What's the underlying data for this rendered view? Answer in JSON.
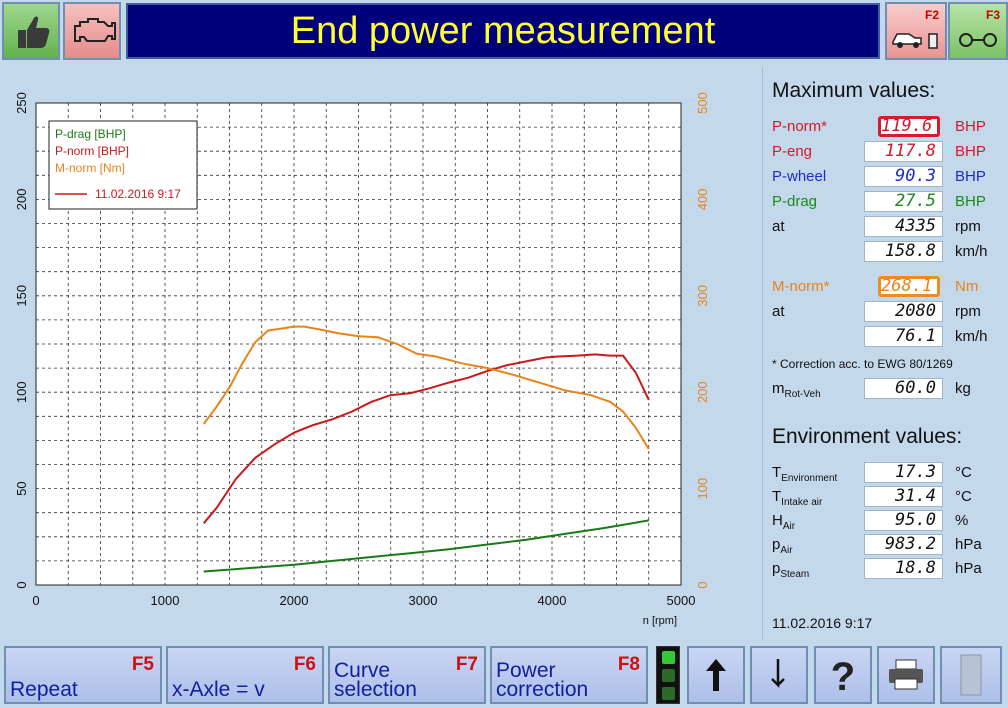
{
  "header": {
    "title": "End power measurement",
    "f2_key": "F2",
    "f3_key": "F3",
    "left_buttons": [
      "thumb-up-icon",
      "engine-icon"
    ]
  },
  "chart_data": {
    "type": "line",
    "x_axis": {
      "label": "n [rpm]",
      "range": [
        0,
        5000
      ],
      "ticks": [
        0,
        1000,
        2000,
        3000,
        4000,
        5000
      ]
    },
    "y_axis_left": {
      "range": [
        0,
        250
      ],
      "ticks": [
        0,
        50,
        100,
        150,
        200,
        250
      ]
    },
    "y_axis_right": {
      "range": [
        0,
        500
      ],
      "ticks": [
        0,
        100,
        200,
        300,
        400,
        500
      ],
      "color": "#e8841c"
    },
    "grid": true,
    "legend_position": "top-left",
    "legend": {
      "entries": [
        {
          "name": "P-drag [BHP]",
          "color": "#1a7a1a"
        },
        {
          "name": "P-norm [BHP]",
          "color": "#c81a1a"
        },
        {
          "name": "M-norm [Nm]",
          "color": "#e8841c"
        }
      ],
      "line_label": "11.02.2016 9:17"
    },
    "series": [
      {
        "name": "P-drag [BHP]",
        "axis": "left",
        "color": "#1a7a1a",
        "points": [
          [
            1300,
            7
          ],
          [
            1500,
            8
          ],
          [
            1700,
            9
          ],
          [
            2000,
            10.5
          ],
          [
            2300,
            12.5
          ],
          [
            2600,
            14.5
          ],
          [
            2900,
            16.5
          ],
          [
            3200,
            18.5
          ],
          [
            3500,
            21
          ],
          [
            3800,
            23.5
          ],
          [
            4100,
            26.5
          ],
          [
            4400,
            29.5
          ],
          [
            4750,
            33.5
          ]
        ]
      },
      {
        "name": "P-norm [BHP]",
        "axis": "left",
        "color": "#c81a1a",
        "points": [
          [
            1300,
            32
          ],
          [
            1400,
            40
          ],
          [
            1550,
            55
          ],
          [
            1700,
            66
          ],
          [
            1850,
            73
          ],
          [
            2000,
            79
          ],
          [
            2150,
            83
          ],
          [
            2300,
            86
          ],
          [
            2450,
            90
          ],
          [
            2600,
            95
          ],
          [
            2750,
            98.5
          ],
          [
            2900,
            99.5
          ],
          [
            3050,
            102
          ],
          [
            3200,
            105
          ],
          [
            3350,
            107.5
          ],
          [
            3500,
            111
          ],
          [
            3650,
            114
          ],
          [
            3800,
            116
          ],
          [
            3950,
            118
          ],
          [
            4050,
            118.5
          ],
          [
            4200,
            119
          ],
          [
            4335,
            119.6
          ],
          [
            4450,
            119
          ],
          [
            4550,
            119
          ],
          [
            4650,
            110
          ],
          [
            4750,
            96
          ]
        ]
      },
      {
        "name": "M-norm [Nm]",
        "axis": "right",
        "color": "#e8841c",
        "points": [
          [
            1300,
            167
          ],
          [
            1400,
            185
          ],
          [
            1500,
            205
          ],
          [
            1600,
            230
          ],
          [
            1700,
            252
          ],
          [
            1800,
            264
          ],
          [
            1900,
            266
          ],
          [
            2000,
            268
          ],
          [
            2080,
            268.1
          ],
          [
            2200,
            265
          ],
          [
            2350,
            261
          ],
          [
            2500,
            258
          ],
          [
            2650,
            257
          ],
          [
            2800,
            250
          ],
          [
            2950,
            240
          ],
          [
            3100,
            237
          ],
          [
            3300,
            230
          ],
          [
            3500,
            225
          ],
          [
            3700,
            218
          ],
          [
            3900,
            210
          ],
          [
            4100,
            202
          ],
          [
            4300,
            197
          ],
          [
            4450,
            190
          ],
          [
            4550,
            180
          ],
          [
            4650,
            163
          ],
          [
            4750,
            141
          ]
        ]
      }
    ]
  },
  "maximum": {
    "title": "Maximum values:",
    "rows": [
      {
        "label": "P-norm*",
        "value": "119.6",
        "unit": "BHP",
        "color": "#d21a2a",
        "highlight": "red"
      },
      {
        "label": "P-eng",
        "value": "117.8",
        "unit": "BHP",
        "color": "#d21a2a"
      },
      {
        "label": "P-wheel",
        "value": "90.3",
        "unit": "BHP",
        "color": "#1c2cc6"
      },
      {
        "label": "P-drag",
        "value": "27.5",
        "unit": "BHP",
        "color": "#1a8a1a"
      },
      {
        "label": "at",
        "value": "4335",
        "unit": "rpm",
        "color": "#111111"
      },
      {
        "label": "",
        "value": "158.8",
        "unit": "km/h",
        "color": "#111111"
      }
    ],
    "torque_rows": [
      {
        "label": "M-norm*",
        "value": "268.1",
        "unit": "Nm",
        "color": "#e8841c",
        "highlight": "orange"
      },
      {
        "label": "at",
        "value": "2080",
        "unit": "rpm",
        "color": "#111111"
      },
      {
        "label": "",
        "value": "76.1",
        "unit": "km/h",
        "color": "#111111"
      }
    ],
    "correction_note": "* Correction acc. to EWG 80/1269",
    "mrot": {
      "label_main": "m",
      "label_sub": "Rot-Veh",
      "value": "60.0",
      "unit": "kg"
    }
  },
  "environment": {
    "title": "Environment values:",
    "rows": [
      {
        "main": "T",
        "sub": "Environment",
        "value": "17.3",
        "unit": "°C"
      },
      {
        "main": "T",
        "sub": "Intake air",
        "value": "31.4",
        "unit": "°C"
      },
      {
        "main": "H",
        "sub": "Air",
        "value": "95.0",
        "unit": "%"
      },
      {
        "main": "p",
        "sub": "Air",
        "value": "983.2",
        "unit": "hPa"
      },
      {
        "main": "p",
        "sub": "Steam",
        "value": "18.8",
        "unit": "hPa"
      }
    ]
  },
  "timestamp": "11.02.2016  9:17",
  "footer": {
    "buttons": [
      {
        "label": "Repeat",
        "key": "F5"
      },
      {
        "label": "x-Axle = v",
        "key": "F6"
      },
      {
        "label": "Curve\nselection",
        "key": "F7"
      },
      {
        "label": "Power\ncorrection",
        "key": "F8"
      }
    ],
    "icons": [
      "arrow-up-icon",
      "arrow-down-icon",
      "help-icon",
      "printer-icon",
      "exit-icon"
    ]
  }
}
